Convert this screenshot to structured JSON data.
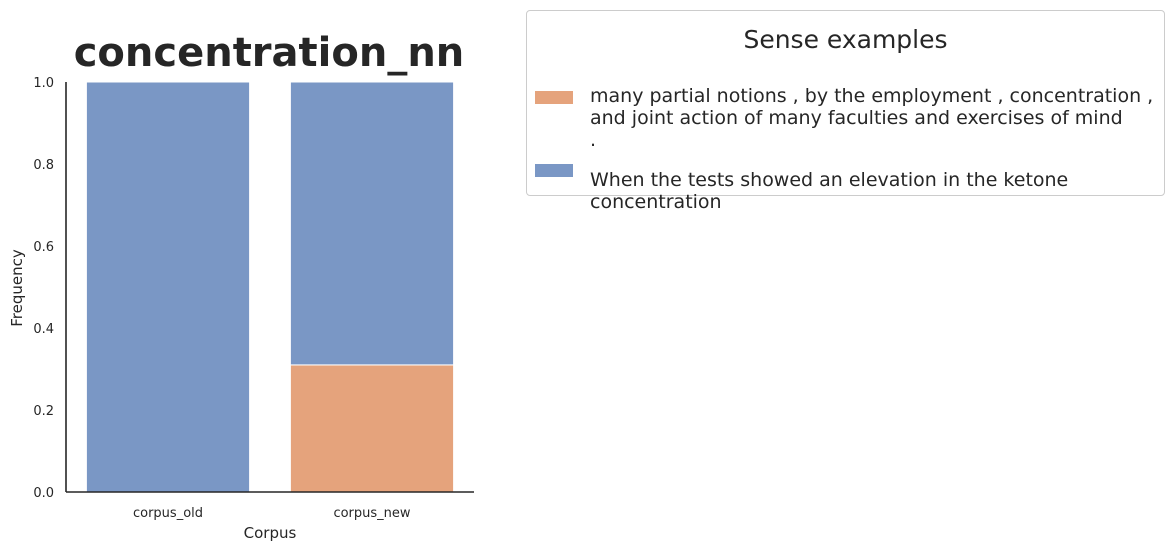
{
  "chart_data": {
    "type": "bar",
    "stacked": true,
    "title": "concentration_nn",
    "xlabel": "Corpus",
    "ylabel": "Frequency",
    "categories": [
      "corpus_old",
      "corpus_new"
    ],
    "ylim": [
      0,
      1
    ],
    "yticks": [
      "0.0",
      "0.2",
      "0.4",
      "0.6",
      "0.8",
      "1.0"
    ],
    "grid": false,
    "series": [
      {
        "values": [
          0.0,
          0.31
        ],
        "color": "#e5a37c"
      },
      {
        "values": [
          1.0,
          0.69
        ],
        "color": "#7a97c5"
      }
    ]
  },
  "legend": {
    "title": "Sense examples",
    "placement": "outside-right-top",
    "items": [
      {
        "text": "many partial notions , by the employment , concentration ,\nand joint action of many faculties and exercises of mind\n.",
        "color": "#e5a37c"
      },
      {
        "text": "When the tests showed an elevation in the ketone concentration",
        "color": "#7a97c5"
      }
    ]
  }
}
